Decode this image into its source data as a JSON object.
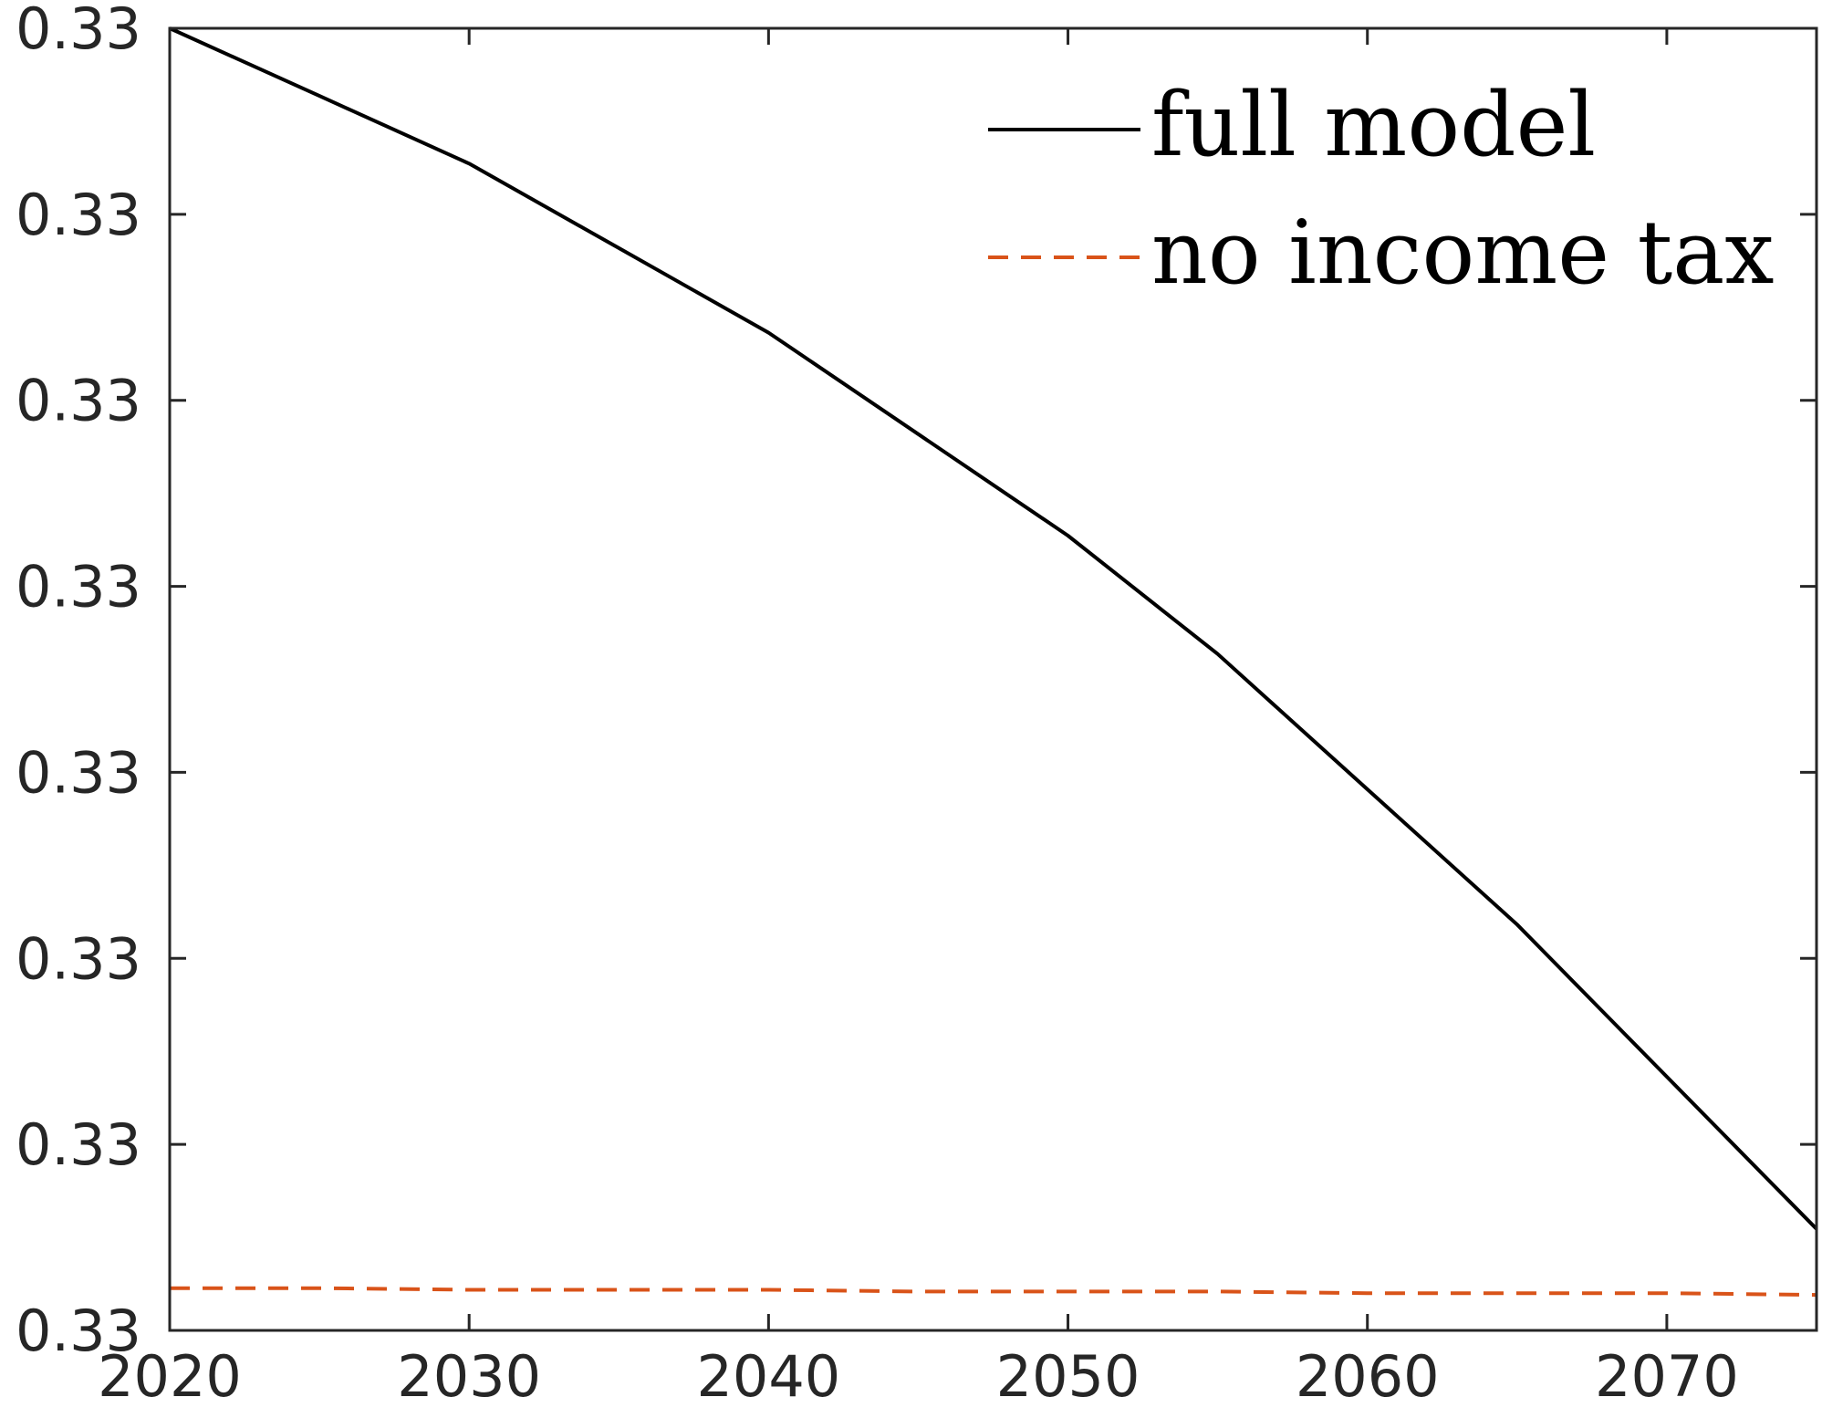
{
  "chart_data": {
    "type": "line",
    "title": "",
    "xlabel": "",
    "ylabel": "",
    "x": [
      2020,
      2025,
      2030,
      2035,
      2040,
      2045,
      2050,
      2055,
      2060,
      2065,
      2070,
      2075
    ],
    "series": [
      {
        "name": "full model",
        "color": "#000000",
        "dash": "solid",
        "values": [
          0.333,
          0.3326,
          0.3322,
          0.3317,
          0.3312,
          0.3306,
          0.33,
          0.3293,
          0.3285,
          0.3277,
          0.3268,
          0.3259
        ]
      },
      {
        "name": "no income tax",
        "color": "#D95319",
        "dash": "dashed",
        "values": [
          0.32555,
          0.32555,
          0.32554,
          0.32554,
          0.32554,
          0.32553,
          0.32553,
          0.32553,
          0.32552,
          0.32552,
          0.32552,
          0.32551
        ]
      }
    ],
    "xlim": [
      2020,
      2075
    ],
    "ylim": [
      0.3253,
      0.333
    ],
    "xticks": [
      2020,
      2030,
      2040,
      2050,
      2060,
      2070
    ],
    "xtick_labels": [
      "2020",
      "2030",
      "2040",
      "2050",
      "2060",
      "2070"
    ],
    "yticks": [
      0.3253,
      0.3264,
      0.3275,
      0.3286,
      0.3297,
      0.3308,
      0.3319,
      0.333
    ],
    "ytick_labels": [
      "0.33",
      "0.33",
      "0.33",
      "0.33",
      "0.33",
      "0.33",
      "0.33",
      "0.33"
    ],
    "grid": false,
    "legend_position": "top-right"
  }
}
